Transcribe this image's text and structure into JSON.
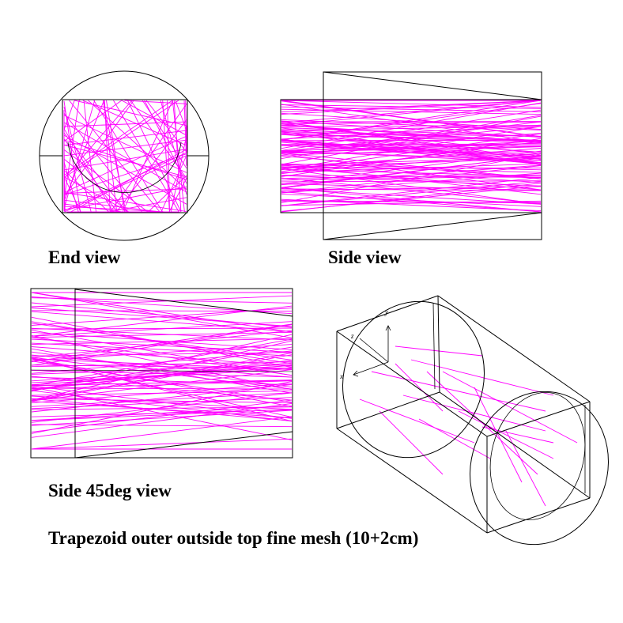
{
  "labels": {
    "end_view": "End view",
    "side_view": "Side view",
    "side45_view": "Side 45deg view",
    "caption": "Trapezoid outer outside top fine mesh (10+2cm)"
  },
  "axes": {
    "x": "x",
    "y": "y",
    "z": "z"
  },
  "colors": {
    "tracks": "#ff00ff",
    "geometry": "#000000",
    "background": "#ffffff"
  },
  "tracks": {
    "end_view": 90,
    "side_view": 110,
    "side45_view": 90,
    "perspective_view": 14
  }
}
